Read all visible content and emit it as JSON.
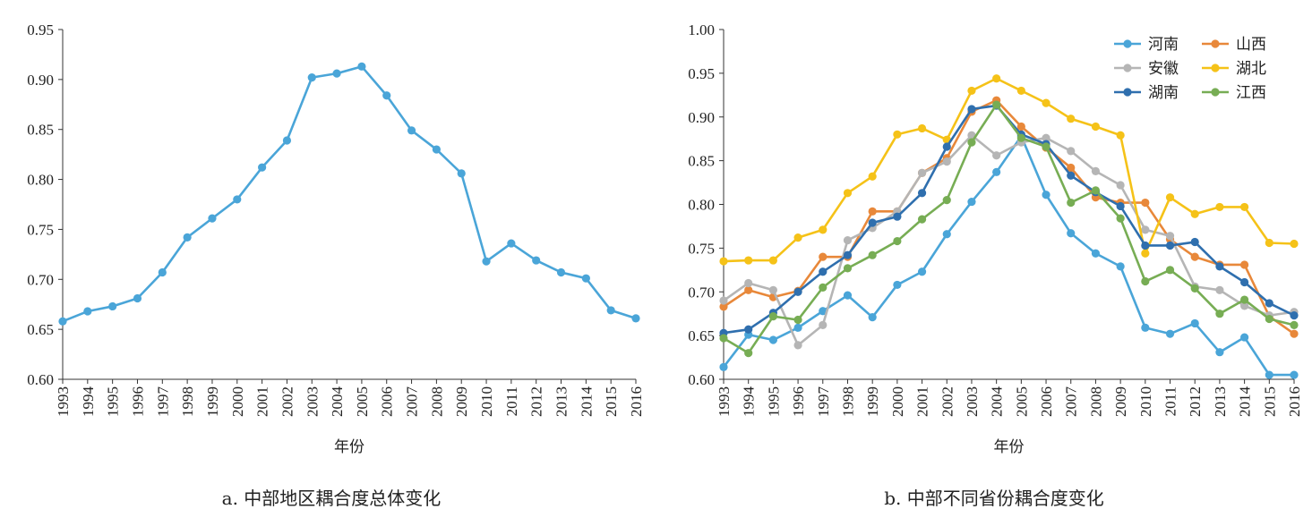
{
  "chart_data": [
    {
      "type": "line",
      "caption": "a. 中部地区耦合度总体变化",
      "xlabel": "年份",
      "ylabel": "",
      "ylim": [
        0.6,
        0.95
      ],
      "yticks": [
        "0.60",
        "0.65",
        "0.70",
        "0.75",
        "0.80",
        "0.85",
        "0.90",
        "0.95"
      ],
      "x": [
        "1993",
        "1994",
        "1995",
        "1996",
        "1997",
        "1998",
        "1999",
        "2000",
        "2001",
        "2002",
        "2003",
        "2004",
        "2005",
        "2006",
        "2007",
        "2008",
        "2009",
        "2010",
        "2011",
        "2012",
        "2013",
        "2014",
        "2015",
        "2016"
      ],
      "series": [
        {
          "color": "#4aa5d8",
          "values": [
            0.658,
            0.668,
            0.673,
            0.681,
            0.707,
            0.742,
            0.761,
            0.78,
            0.812,
            0.839,
            0.902,
            0.906,
            0.913,
            0.884,
            0.849,
            0.83,
            0.806,
            0.718,
            0.736,
            0.719,
            0.707,
            0.701,
            0.669,
            0.661
          ]
        }
      ]
    },
    {
      "type": "line",
      "caption": "b. 中部不同省份耦合度变化",
      "xlabel": "年份",
      "ylabel": "",
      "ylim": [
        0.6,
        1.0
      ],
      "yticks": [
        "0.60",
        "0.65",
        "0.70",
        "0.75",
        "0.80",
        "0.85",
        "0.90",
        "0.95",
        "1.00"
      ],
      "x": [
        "1993",
        "1994",
        "1995",
        "1996",
        "1997",
        "1998",
        "1999",
        "2000",
        "2001",
        "2002",
        "2003",
        "2004",
        "2005",
        "2006",
        "2007",
        "2008",
        "2009",
        "2010",
        "2011",
        "2012",
        "2013",
        "2014",
        "2015",
        "2016"
      ],
      "legend_position": "top-right",
      "series": [
        {
          "name": "河南",
          "color": "#4aa5d8",
          "values": [
            0.614,
            0.651,
            0.645,
            0.659,
            0.678,
            0.696,
            0.671,
            0.708,
            0.723,
            0.766,
            0.803,
            0.837,
            0.878,
            0.811,
            0.767,
            0.744,
            0.729,
            0.659,
            0.652,
            0.664,
            0.631,
            0.648,
            0.605,
            0.605
          ]
        },
        {
          "name": "山西",
          "color": "#e8883a",
          "values": [
            0.683,
            0.702,
            0.694,
            0.701,
            0.74,
            0.74,
            0.792,
            0.792,
            0.836,
            0.853,
            0.906,
            0.919,
            0.889,
            0.865,
            0.842,
            0.808,
            0.802,
            0.802,
            0.76,
            0.74,
            0.731,
            0.731,
            0.672,
            0.652
          ]
        },
        {
          "name": "安徽",
          "color": "#b5b5b5",
          "values": [
            0.69,
            0.71,
            0.702,
            0.639,
            0.662,
            0.759,
            0.773,
            0.792,
            0.836,
            0.849,
            0.879,
            0.856,
            0.871,
            0.876,
            0.861,
            0.838,
            0.822,
            0.771,
            0.764,
            0.706,
            0.702,
            0.684,
            0.673,
            0.677
          ]
        },
        {
          "name": "湖北",
          "color": "#f5c218",
          "values": [
            0.735,
            0.736,
            0.736,
            0.762,
            0.771,
            0.813,
            0.832,
            0.88,
            0.887,
            0.874,
            0.93,
            0.944,
            0.93,
            0.916,
            0.898,
            0.889,
            0.879,
            0.744,
            0.808,
            0.789,
            0.797,
            0.797,
            0.756,
            0.755
          ]
        },
        {
          "name": "湖南",
          "color": "#2f6fae",
          "values": [
            0.653,
            0.657,
            0.676,
            0.7,
            0.723,
            0.742,
            0.779,
            0.786,
            0.813,
            0.866,
            0.909,
            0.913,
            0.88,
            0.869,
            0.833,
            0.814,
            0.798,
            0.753,
            0.753,
            0.757,
            0.729,
            0.711,
            0.687,
            0.673
          ]
        },
        {
          "name": "江西",
          "color": "#77ad54",
          "values": [
            0.647,
            0.63,
            0.672,
            0.668,
            0.705,
            0.727,
            0.742,
            0.758,
            0.783,
            0.805,
            0.871,
            0.914,
            0.876,
            0.866,
            0.802,
            0.816,
            0.784,
            0.712,
            0.725,
            0.704,
            0.675,
            0.691,
            0.669,
            0.662
          ]
        }
      ]
    }
  ]
}
